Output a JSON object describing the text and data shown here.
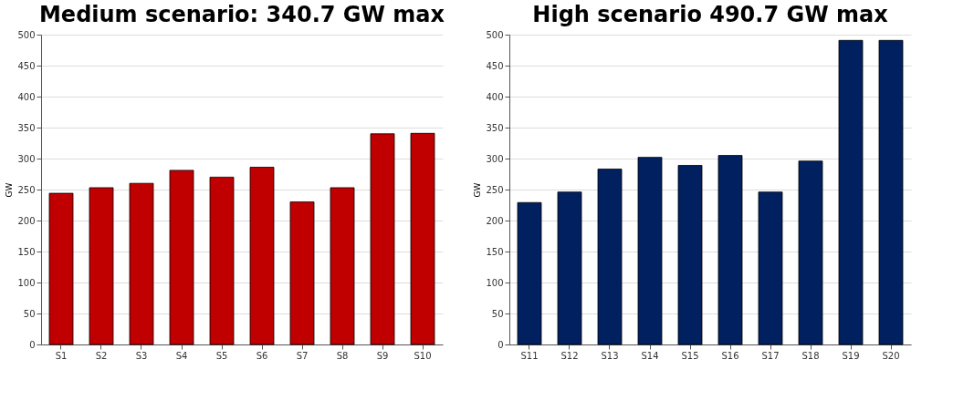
{
  "chart_data": [
    {
      "type": "bar",
      "title": "Medium scenario: 340.7 GW max",
      "ylabel": "GW",
      "categories": [
        "S1",
        "S2",
        "S3",
        "S4",
        "S5",
        "S6",
        "S7",
        "S8",
        "S9",
        "S10"
      ],
      "values": [
        244,
        253,
        260,
        281,
        270,
        286,
        230,
        253,
        340,
        340.7
      ],
      "color": "#c00000",
      "ylim": [
        0,
        500
      ],
      "yticks": [
        0,
        50,
        100,
        150,
        200,
        250,
        300,
        350,
        400,
        450,
        500
      ],
      "grid": "y"
    },
    {
      "type": "bar",
      "title": "High scenario  490.7 GW max",
      "ylabel": "GW",
      "categories": [
        "S11",
        "S12",
        "S13",
        "S14",
        "S15",
        "S16",
        "S17",
        "S18",
        "S19",
        "S20"
      ],
      "values": [
        229,
        246,
        283,
        302,
        289,
        305,
        246,
        296,
        490.7,
        490.7
      ],
      "color": "#002060",
      "ylim": [
        0,
        500
      ],
      "yticks": [
        0,
        50,
        100,
        150,
        200,
        250,
        300,
        350,
        400,
        450,
        500
      ],
      "grid": "y"
    }
  ]
}
